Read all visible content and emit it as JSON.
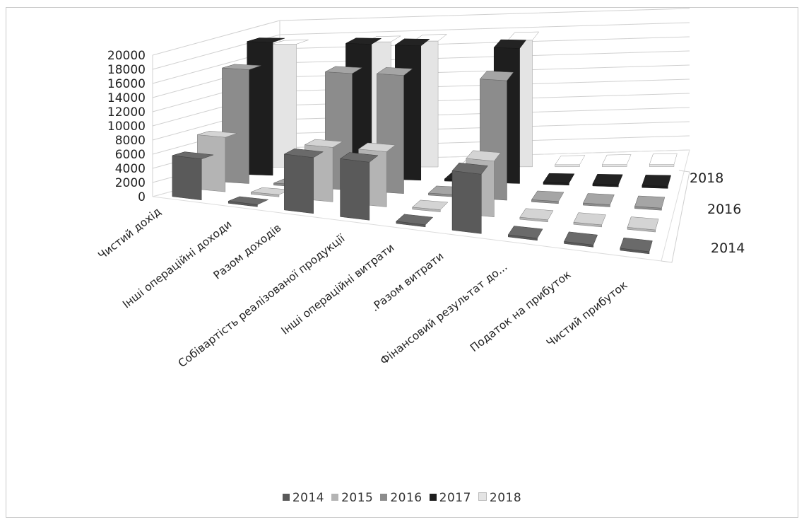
{
  "chart_data": {
    "type": "bar",
    "subtype": "3d-column",
    "categories": [
      "Чистий дохід",
      "Інші операційні доходи",
      "Разом доходів",
      "Собівартість реалізованої продукції",
      "Інші операційні витрати",
      ".Разом витрати",
      "Фінансовий результат до...",
      "Податок на прибуток",
      "Чистий прибуток"
    ],
    "series": [
      {
        "name": "2014",
        "color": "#5a5a5a",
        "values": [
          5800,
          50,
          7900,
          8200,
          50,
          8400,
          300,
          100,
          300
        ]
      },
      {
        "name": "2015",
        "color": "#b4b4b4",
        "values": [
          7700,
          100,
          7700,
          7800,
          200,
          7900,
          200,
          100,
          200
        ]
      },
      {
        "name": "2016",
        "color": "#8c8c8c",
        "values": [
          16100,
          50,
          16500,
          16700,
          100,
          16900,
          150,
          100,
          150
        ]
      },
      {
        "name": "2017",
        "color": "#1e1e1e",
        "values": [
          18800,
          150,
          19000,
          19000,
          200,
          19100,
          150,
          100,
          150
        ]
      },
      {
        "name": "2018",
        "color": "#e4e4e4",
        "values": [
          17400,
          100,
          17700,
          17800,
          200,
          17900,
          150,
          100,
          150
        ]
      }
    ],
    "depth_axis_ticks": [
      "2018",
      "2016",
      "2014"
    ],
    "y_ticks": [
      "0",
      "2000",
      "4000",
      "6000",
      "8000",
      "10000",
      "12000",
      "14000",
      "16000",
      "18000",
      "20000"
    ],
    "ylim": [
      0,
      20000
    ],
    "grid": true,
    "legend": "bottom"
  }
}
